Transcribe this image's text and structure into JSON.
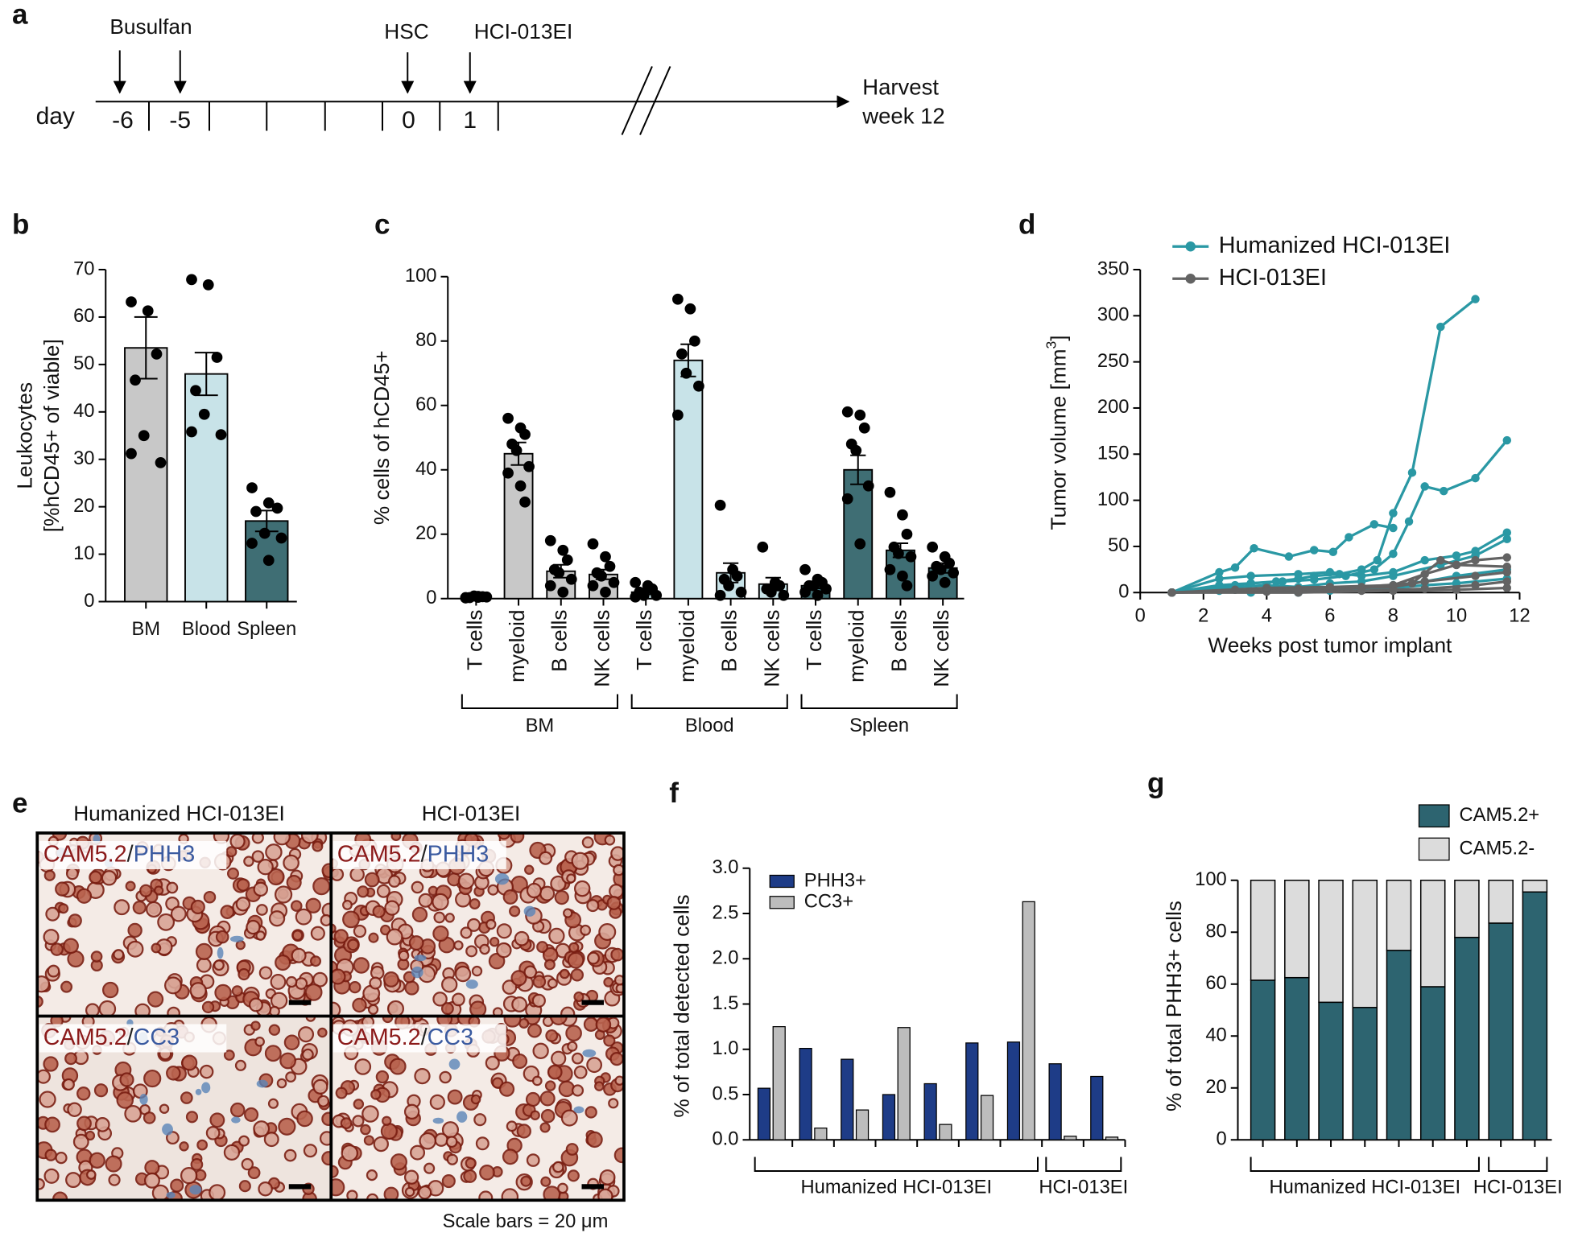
{
  "timeline": {
    "panel": "a",
    "axis_label": "day",
    "events": [
      "Busulfan",
      "HSC",
      "HCI-013EI"
    ],
    "days": [
      "-6",
      "-5",
      "0",
      "1"
    ],
    "end_label": [
      "Harvest",
      "week 12"
    ]
  },
  "images": {
    "panel": "e",
    "columns": [
      "Humanized HCI-013EI",
      "HCI-013EI"
    ],
    "stains": [
      {
        "marker": "CAM5.2",
        "separator": "/",
        "target": "PHH3"
      },
      {
        "marker": "CAM5.2",
        "separator": "/",
        "target": "CC3"
      }
    ],
    "scale_bar_label": "Scale bars = 20 μm"
  },
  "chart_data": [
    {
      "panel": "b",
      "type": "bar",
      "ylabel": [
        "Leukocytes",
        "[%hCD45+ of viable]"
      ],
      "categories": [
        "BM",
        "Blood",
        "Spleen"
      ],
      "values": [
        53.5,
        48,
        17
      ],
      "errors": [
        6.5,
        4.5,
        2.2
      ],
      "points": [
        [
          63.2,
          61.3,
          52.2,
          46.7,
          35,
          29.3,
          31.2
        ],
        [
          67.9,
          66.8,
          51.5,
          44.5,
          39.5,
          35.2,
          35.8
        ],
        [
          24,
          20.8,
          19.7,
          19,
          14.4,
          13.4,
          12.3,
          8.7
        ]
      ],
      "colors": [
        "#c8c8c8",
        "#c8e3e8",
        "#3f6e74"
      ],
      "ylim": [
        0,
        70
      ],
      "yticks": [
        0,
        10,
        20,
        30,
        40,
        50,
        60,
        70
      ]
    },
    {
      "panel": "c",
      "type": "bar",
      "ylabel": "% cells of hCD45+",
      "categories": [
        "T cells",
        "myeloid",
        "B cells",
        "NK cells",
        "T cells",
        "myeloid",
        "B cells",
        "NK cells",
        "T cells",
        "myeloid",
        "B cells",
        "NK cells"
      ],
      "groups": [
        "BM",
        "BM",
        "BM",
        "BM",
        "Blood",
        "Blood",
        "Blood",
        "Blood",
        "Spleen",
        "Spleen",
        "Spleen",
        "Spleen"
      ],
      "values": [
        0.5,
        45,
        8.5,
        7.5,
        2,
        74,
        8,
        4.5,
        4,
        40,
        15,
        9.5
      ],
      "errors": [
        0.3,
        3.5,
        2,
        1.5,
        0.7,
        5,
        3,
        2,
        0.8,
        4.5,
        2.2,
        1.5
      ],
      "points": [
        [
          0.2,
          0.4,
          0.6,
          0.3,
          0.8,
          0.5,
          0.3,
          0.7
        ],
        [
          56,
          53,
          51,
          48,
          46,
          41,
          39,
          35,
          30
        ],
        [
          18,
          15,
          12,
          9,
          8,
          6,
          4,
          2
        ],
        [
          17,
          13,
          10,
          8,
          7,
          5,
          4,
          2
        ],
        [
          5,
          4,
          3,
          2,
          1,
          1,
          0.5
        ],
        [
          93,
          90,
          80,
          76,
          70,
          66,
          57
        ],
        [
          29,
          9,
          7,
          6,
          4,
          2,
          1
        ],
        [
          16,
          5,
          4,
          3,
          2,
          1
        ],
        [
          9,
          6,
          5,
          4,
          4,
          3,
          2,
          1
        ],
        [
          58,
          57,
          53,
          48,
          46,
          35,
          31,
          17
        ],
        [
          33,
          26,
          20,
          16,
          14,
          13,
          9,
          7,
          4
        ],
        [
          16,
          13,
          11,
          10,
          9,
          8,
          7,
          5
        ]
      ],
      "colors": [
        "#c8c8c8",
        "#c8c8c8",
        "#c8c8c8",
        "#c8c8c8",
        "#c8e3e8",
        "#c8e3e8",
        "#c8e3e8",
        "#c8e3e8",
        "#3f6e74",
        "#3f6e74",
        "#3f6e74",
        "#3f6e74"
      ],
      "ylim": [
        0,
        100
      ],
      "yticks": [
        0,
        20,
        40,
        60,
        80,
        100
      ]
    },
    {
      "panel": "d",
      "type": "line",
      "xlabel": "Weeks post tumor implant",
      "ylabel": {
        "main": "Tumor volume [mm",
        "sup": "3",
        "close": "]"
      },
      "series": [
        {
          "name": "Humanized HCI-013EI",
          "color": "#2a98a4",
          "lines": [
            {
              "x": [
                1,
                2.5,
                3,
                3.5,
                4.3,
                5,
                5.5,
                6.3,
                7,
                7.5,
                8,
                8.6,
                9.5,
                10.6
              ],
              "y": [
                0,
                5,
                8,
                10,
                12,
                15,
                18,
                20,
                25,
                35,
                86,
                130,
                288,
                318
              ]
            },
            {
              "x": [
                1,
                2.5,
                3.5,
                4.5,
                5.5,
                6.5,
                7.4,
                8,
                8.5,
                9,
                9.6,
                10.6,
                11.6
              ],
              "y": [
                0,
                8,
                10,
                12,
                14,
                18,
                25,
                42,
                77,
                115,
                110,
                124,
                165
              ]
            },
            {
              "x": [
                1,
                2.5,
                3,
                3.6,
                4.7,
                5.5,
                6.1,
                6.6,
                7.4,
                8
              ],
              "y": [
                0,
                22,
                27,
                48,
                39,
                46,
                44,
                60,
                74,
                70
              ]
            },
            {
              "x": [
                1,
                2.5,
                3.5,
                5,
                6,
                7,
                8,
                9,
                10,
                10.6,
                11.6
              ],
              "y": [
                0,
                15,
                18,
                20,
                22,
                18,
                22,
                35,
                40,
                45,
                65
              ]
            },
            {
              "x": [
                1,
                2.5,
                4,
                5,
                6,
                7,
                8,
                9.5,
                10.6,
                11.6
              ],
              "y": [
                0,
                5,
                8,
                6,
                10,
                12,
                18,
                30,
                40,
                58
              ]
            },
            {
              "x": [
                1,
                3,
                4,
                5,
                6,
                7,
                8,
                9,
                10,
                11.6
              ],
              "y": [
                0,
                3,
                5,
                0,
                4,
                6,
                8,
                12,
                18,
                25
              ]
            },
            {
              "x": [
                1,
                2.5,
                3.5,
                4,
                5,
                6,
                7,
                8,
                9,
                10,
                11.6
              ],
              "y": [
                0,
                2,
                0,
                3,
                0,
                2,
                3,
                5,
                8,
                10,
                15
              ]
            }
          ]
        },
        {
          "name": "HCI-013EI",
          "color": "#636363",
          "lines": [
            {
              "x": [
                1,
                4,
                6,
                8,
                9,
                10,
                10.6,
                11.6
              ],
              "y": [
                0,
                5,
                6,
                8,
                20,
                30,
                35,
                38
              ]
            },
            {
              "x": [
                1,
                3,
                5,
                7,
                8.6,
                9.5,
                10,
                11.6
              ],
              "y": [
                0,
                3,
                4,
                6,
                10,
                35,
                30,
                28
              ]
            },
            {
              "x": [
                1,
                4,
                6,
                8,
                9,
                10.6,
                11.6
              ],
              "y": [
                0,
                2,
                4,
                6,
                12,
                18,
                22
              ]
            },
            {
              "x": [
                1,
                4,
                7,
                9,
                10.6,
                11.6
              ],
              "y": [
                0,
                1,
                2,
                4,
                8,
                12
              ]
            },
            {
              "x": [
                1,
                5,
                8,
                10,
                11.6
              ],
              "y": [
                0,
                0,
                2,
                3,
                5
              ]
            }
          ]
        }
      ],
      "xlim": [
        0,
        12
      ],
      "xticks": [
        0,
        2,
        4,
        6,
        8,
        10,
        12
      ],
      "ylim": [
        0,
        350
      ],
      "yticks": [
        0,
        50,
        100,
        150,
        200,
        250,
        300,
        350
      ]
    },
    {
      "panel": "f",
      "type": "grouped_bar",
      "ylabel": "% of total detected cells",
      "categories": [
        null,
        null,
        null,
        null,
        null,
        null,
        null,
        null,
        null
      ],
      "groups": [
        "Humanized HCI-013EI",
        "Humanized HCI-013EI",
        "Humanized HCI-013EI",
        "Humanized HCI-013EI",
        "Humanized HCI-013EI",
        "Humanized HCI-013EI",
        "Humanized HCI-013EI",
        "HCI-013EI",
        "HCI-013EI"
      ],
      "series": [
        {
          "name": "PHH3+",
          "color": "#1e3c87",
          "values": [
            0.57,
            1.01,
            0.89,
            0.5,
            0.62,
            1.07,
            1.08,
            0.84,
            0.7
          ]
        },
        {
          "name": "CC3+",
          "color": "#bdbdbd",
          "values": [
            1.25,
            0.13,
            0.33,
            1.24,
            0.17,
            0.49,
            2.63,
            0.04,
            0.03
          ]
        }
      ],
      "ylim": [
        0,
        3
      ],
      "yticks": [
        {
          "value": 0,
          "label": "0.0"
        },
        {
          "value": 0.5,
          "label": "0.5"
        },
        {
          "value": 1,
          "label": "1.0"
        },
        {
          "value": 1.5,
          "label": "1.5"
        },
        {
          "value": 2,
          "label": "2.0"
        },
        {
          "value": 2.5,
          "label": "2.5"
        },
        {
          "value": 3,
          "label": "3.0"
        }
      ]
    },
    {
      "panel": "g",
      "type": "stacked_bar",
      "ylabel": "% of total PHH3+ cells",
      "categories": [
        null,
        null,
        null,
        null,
        null,
        null,
        null,
        null,
        null
      ],
      "groups": [
        "Humanized HCI-013EI",
        "Humanized HCI-013EI",
        "Humanized HCI-013EI",
        "Humanized HCI-013EI",
        "Humanized HCI-013EI",
        "Humanized HCI-013EI",
        "Humanized HCI-013EI",
        "HCI-013EI",
        "HCI-013EI"
      ],
      "series": [
        {
          "name": "CAM5.2+",
          "color": "#2d6470",
          "values": [
            61.5,
            62.5,
            53,
            51,
            73,
            59,
            78,
            83.5,
            95.5
          ]
        },
        {
          "name": "CAM5.2-",
          "color": "#dcdcdc",
          "values": [
            38.5,
            37.5,
            47,
            49,
            27,
            41,
            22,
            16.5,
            4.5
          ]
        }
      ],
      "ylim": [
        0,
        100
      ],
      "yticks": [
        0,
        20,
        40,
        60,
        80,
        100
      ]
    }
  ]
}
